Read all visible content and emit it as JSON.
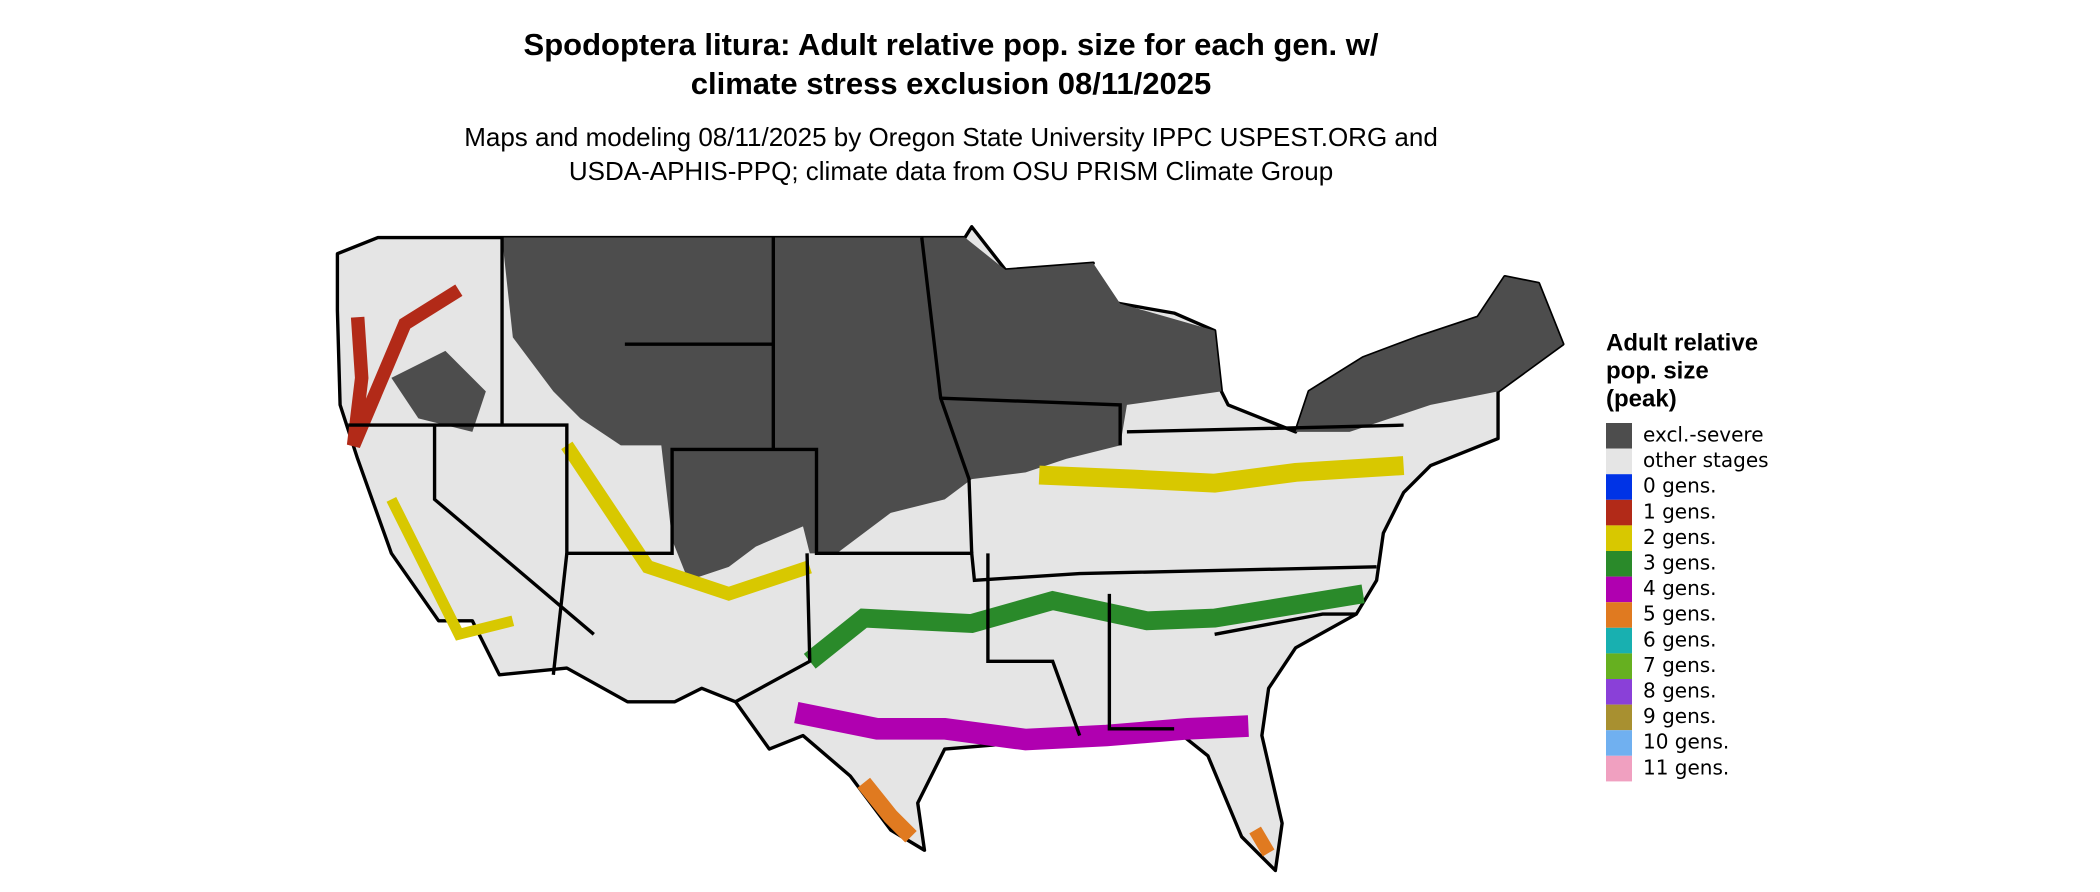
{
  "map": {
    "title_lines": [
      "Spodoptera litura: Adult relative pop. size for each gen. w/",
      "climate stress exclusion 08/11/2025"
    ],
    "subtitle_lines": [
      "Maps and modeling 08/11/2025 by Oregon State University IPPC USPEST.ORG and",
      "USDA-APHIS-PPQ; climate data from OSU PRISM Climate Group"
    ],
    "legend": {
      "title_lines": [
        "Adult relative",
        "pop. size",
        "(peak)"
      ],
      "items": [
        {
          "label": "excl.-severe",
          "color": "#4d4d4d"
        },
        {
          "label": "other stages",
          "color": "#e5e5e5"
        },
        {
          "label": "0 gens.",
          "color": "#0033e6"
        },
        {
          "label": "1 gens.",
          "color": "#b22a18"
        },
        {
          "label": "2 gens.",
          "color": "#d8c800"
        },
        {
          "label": "3 gens.",
          "color": "#2a8a2a"
        },
        {
          "label": "4 gens.",
          "color": "#b000b0"
        },
        {
          "label": "5 gens.",
          "color": "#e07a20"
        },
        {
          "label": "6 gens.",
          "color": "#18b0b0"
        },
        {
          "label": "7 gens.",
          "color": "#66b020"
        },
        {
          "label": "8 gens.",
          "color": "#8a40d8"
        },
        {
          "label": "9 gens.",
          "color": "#a89030"
        },
        {
          "label": "10 gens.",
          "color": "#70b0f0"
        },
        {
          "label": "11 gens.",
          "color": "#f0a0c0"
        }
      ]
    }
  }
}
